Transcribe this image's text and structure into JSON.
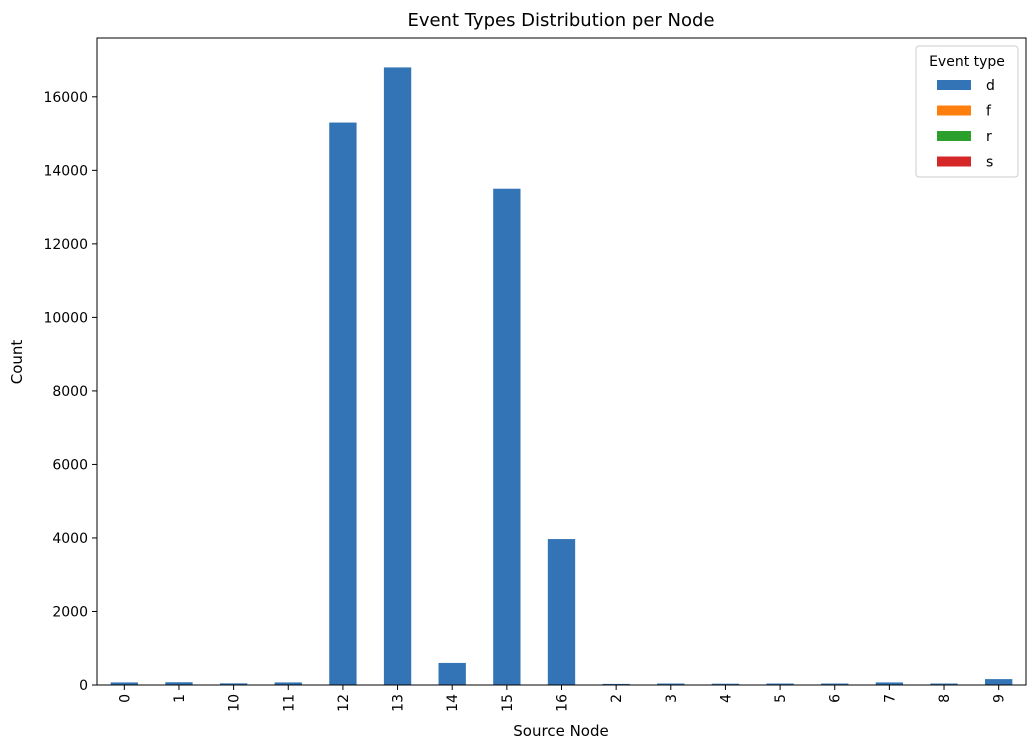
{
  "chart_data": {
    "type": "bar",
    "stacked": true,
    "title": "Event Types Distribution per Node",
    "xlabel": "Source Node",
    "ylabel": "Count",
    "categories": [
      "0",
      "1",
      "10",
      "11",
      "12",
      "13",
      "14",
      "15",
      "16",
      "2",
      "3",
      "4",
      "5",
      "6",
      "7",
      "8",
      "9"
    ],
    "ylim": [
      0,
      17600
    ],
    "yticks": [
      0,
      2000,
      4000,
      6000,
      8000,
      10000,
      12000,
      14000,
      16000
    ],
    "grid": false,
    "legend": {
      "title": "Event type",
      "placement": "top-right"
    },
    "series": [
      {
        "name": "d",
        "color": "#3274b5",
        "values": [
          70,
          75,
          45,
          70,
          15300,
          16800,
          600,
          13500,
          3970,
          30,
          40,
          35,
          40,
          40,
          70,
          40,
          160
        ]
      },
      {
        "name": "f",
        "color": "#ff7f0e",
        "values": [
          0,
          0,
          0,
          0,
          0,
          0,
          0,
          0,
          0,
          0,
          0,
          0,
          0,
          0,
          0,
          0,
          0
        ]
      },
      {
        "name": "r",
        "color": "#2ca02c",
        "values": [
          0,
          0,
          0,
          0,
          0,
          0,
          0,
          0,
          0,
          0,
          0,
          0,
          0,
          0,
          0,
          0,
          0
        ]
      },
      {
        "name": "s",
        "color": "#d62728",
        "values": [
          0,
          0,
          0,
          0,
          0,
          0,
          0,
          0,
          0,
          0,
          0,
          0,
          0,
          0,
          0,
          0,
          0
        ]
      }
    ]
  }
}
